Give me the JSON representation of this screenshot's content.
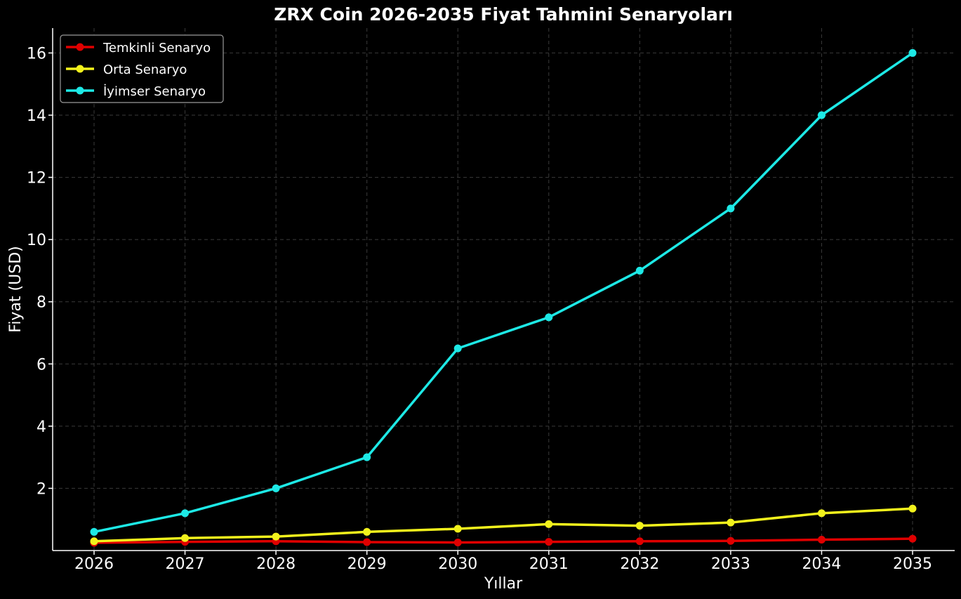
{
  "chart_data": {
    "type": "line",
    "title": "ZRX Coin 2026-2035 Fiyat Tahmini Senaryoları",
    "xlabel": "Yıllar",
    "ylabel": "Fiyat (USD)",
    "x": [
      2026,
      2027,
      2028,
      2029,
      2030,
      2031,
      2032,
      2033,
      2034,
      2035
    ],
    "ylim": [
      0,
      16.8
    ],
    "yticks": [
      2,
      4,
      6,
      8,
      10,
      12,
      14,
      16
    ],
    "grid": true,
    "legend_position": "top-left",
    "series": [
      {
        "name": "Temkinli Senaryo",
        "color": "#e00000",
        "values": [
          0.25,
          0.28,
          0.3,
          0.27,
          0.26,
          0.28,
          0.3,
          0.31,
          0.35,
          0.38
        ]
      },
      {
        "name": "Orta Senaryo",
        "color": "#f2f21c",
        "values": [
          0.3,
          0.4,
          0.45,
          0.6,
          0.7,
          0.85,
          0.8,
          0.9,
          1.2,
          1.35
        ]
      },
      {
        "name": "İyimser Senaryo",
        "color": "#1de9e6",
        "values": [
          0.6,
          1.2,
          2.0,
          3.0,
          6.5,
          7.5,
          9.0,
          11.0,
          14.0,
          16.0
        ]
      }
    ]
  }
}
